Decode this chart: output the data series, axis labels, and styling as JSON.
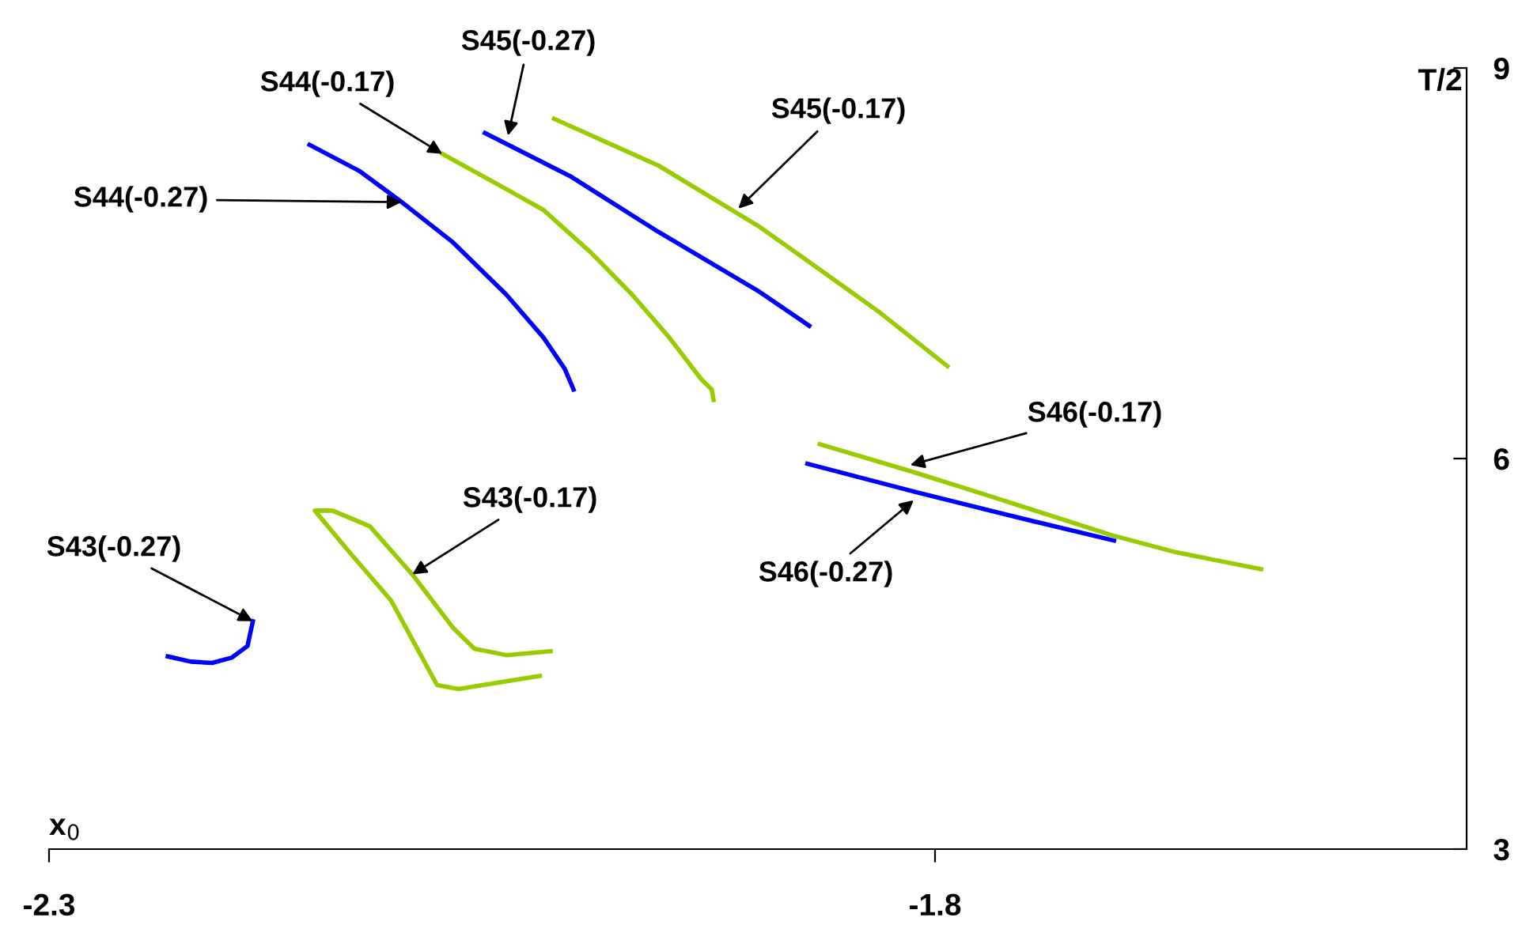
{
  "chart_data": {
    "type": "line",
    "xlabel": "x$_{0}$",
    "ylabel": "T/2",
    "xlim": [
      -2.3,
      -1.5
    ],
    "xticks": [
      -2.3,
      -1.8
    ],
    "ylim": [
      3,
      9
    ],
    "yticks": [
      3,
      6,
      9
    ],
    "grid": false,
    "legend": false,
    "marker": "none",
    "line_style": "solid",
    "series": [
      {
        "color": "#0000ff",
        "x": [
          -2.153,
          -2.125,
          -2.101,
          -2.072,
          -2.042,
          -2.021,
          -2.009,
          -2.004
        ],
        "values": [
          8.41,
          8.21,
          7.97,
          7.66,
          7.26,
          6.93,
          6.69,
          6.53
        ]
      },
      {
        "color": "#99cc00",
        "x": [
          -2.078,
          -2.042,
          -2.021,
          -1.994,
          -1.971,
          -1.95,
          -1.932,
          -1.926,
          -1.925
        ],
        "values": [
          8.34,
          8.07,
          7.91,
          7.58,
          7.26,
          6.93,
          6.61,
          6.53,
          6.45
        ]
      },
      {
        "color": "#0000ff",
        "x": [
          -2.054,
          -2.006,
          -1.956,
          -1.899,
          -1.871
        ],
        "values": [
          8.5,
          8.17,
          7.74,
          7.28,
          7.02
        ]
      },
      {
        "color": "#99cc00",
        "x": [
          -2.015,
          -1.956,
          -1.899,
          -1.87,
          -1.831,
          -1.793
        ],
        "values": [
          8.61,
          8.25,
          7.78,
          7.5,
          7.12,
          6.71
        ]
      },
      {
        "color": "#99cc00",
        "x": [
          -1.865,
          -1.813,
          -1.771,
          -1.7,
          -1.664,
          -1.616
        ],
        "values": [
          6.11,
          5.9,
          5.72,
          5.41,
          5.28,
          5.15
        ]
      },
      {
        "color": "#0000ff",
        "x": [
          -1.872,
          -1.81,
          -1.745,
          -1.699
        ],
        "values": [
          5.96,
          5.74,
          5.52,
          5.37
        ]
      },
      {
        "color": "#0000ff",
        "x": [
          -2.233,
          -2.22,
          -2.208,
          -2.197,
          -2.188,
          -2.185
        ],
        "values": [
          4.48,
          4.44,
          4.43,
          4.47,
          4.56,
          4.75
        ]
      },
      {
        "color": "#99cc00",
        "x": [
          -2.017,
          -2.042,
          -2.06,
          -2.072,
          -2.095,
          -2.119,
          -2.14,
          -2.15,
          -2.131,
          -2.107,
          -2.089,
          -2.081,
          -2.069,
          -2.023
        ],
        "values": [
          4.52,
          4.49,
          4.54,
          4.7,
          5.11,
          5.48,
          5.6,
          5.6,
          5.29,
          4.91,
          4.46,
          4.26,
          4.23,
          4.33
        ]
      }
    ],
    "annotations": [
      {
        "text": "S44(-0.27)",
        "x": -2.101,
        "y": 7.97
      },
      {
        "text": "S44(-0.17)",
        "x": -2.078,
        "y": 8.34
      },
      {
        "text": "S45(-0.27)",
        "x": -2.041,
        "y": 8.48
      },
      {
        "text": "S45(-0.17)",
        "x": -1.911,
        "y": 7.92
      },
      {
        "text": "S46(-0.17)",
        "x": -1.814,
        "y": 5.95
      },
      {
        "text": "S46(-0.27)",
        "x": -1.812,
        "y": 5.68
      },
      {
        "text": "S43(-0.27)",
        "x": -2.185,
        "y": 4.75
      },
      {
        "text": "S43(-0.17)",
        "x": -2.095,
        "y": 5.11
      }
    ]
  }
}
